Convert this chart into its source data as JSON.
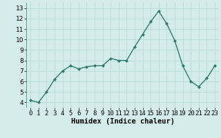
{
  "x": [
    0,
    1,
    2,
    3,
    4,
    5,
    6,
    7,
    8,
    9,
    10,
    11,
    12,
    13,
    14,
    15,
    16,
    17,
    18,
    19,
    20,
    21,
    22,
    23
  ],
  "y": [
    4.2,
    4.0,
    5.0,
    6.2,
    7.0,
    7.5,
    7.2,
    7.4,
    7.5,
    7.5,
    8.2,
    8.0,
    8.0,
    9.3,
    10.5,
    11.7,
    12.7,
    11.5,
    9.9,
    7.5,
    6.0,
    5.5,
    6.3,
    7.5
  ],
  "xlabel": "Humidex (Indice chaleur)",
  "ylim": [
    3.5,
    13.5
  ],
  "xlim": [
    -0.5,
    23.5
  ],
  "yticks": [
    4,
    5,
    6,
    7,
    8,
    9,
    10,
    11,
    12,
    13
  ],
  "xtick_labels": [
    "0",
    "1",
    "2",
    "3",
    "4",
    "5",
    "6",
    "7",
    "8",
    "9",
    "10",
    "11",
    "12",
    "13",
    "14",
    "15",
    "16",
    "17",
    "18",
    "19",
    "20",
    "21",
    "22",
    "23"
  ],
  "line_color": "#2e7b6e",
  "marker_color": "#2e7b6e",
  "bg_color": "#d4eceb",
  "grid_color": "#b8dbd9",
  "tick_fontsize": 6.5,
  "xlabel_fontsize": 7.5
}
